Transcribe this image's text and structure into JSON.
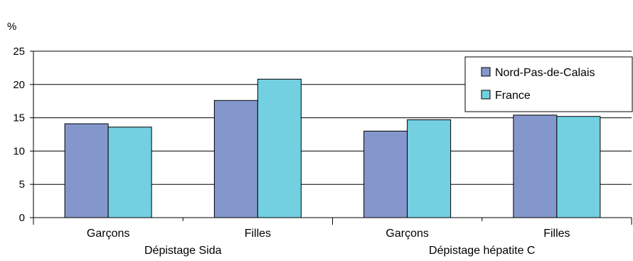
{
  "chart_data": {
    "type": "bar",
    "ylabel": "%",
    "ylim": [
      0,
      25
    ],
    "yticks": [
      0,
      5,
      10,
      15,
      20,
      25
    ],
    "groups": [
      {
        "label": "Dépistage Sida",
        "categories": [
          "Garçons",
          "Filles"
        ]
      },
      {
        "label": "Dépistage hépatite C",
        "categories": [
          "Garçons",
          "Filles"
        ]
      }
    ],
    "categories": [
      "Garçons",
      "Filles",
      "Garçons",
      "Filles"
    ],
    "series": [
      {
        "name": "Nord-Pas-de-Calais",
        "color": "#8497cc",
        "values": [
          14.1,
          17.6,
          13.0,
          15.4
        ]
      },
      {
        "name": "France",
        "color": "#72d0e1",
        "values": [
          13.6,
          20.8,
          14.7,
          15.2
        ]
      }
    ],
    "grid": true,
    "legend": "top-right"
  }
}
